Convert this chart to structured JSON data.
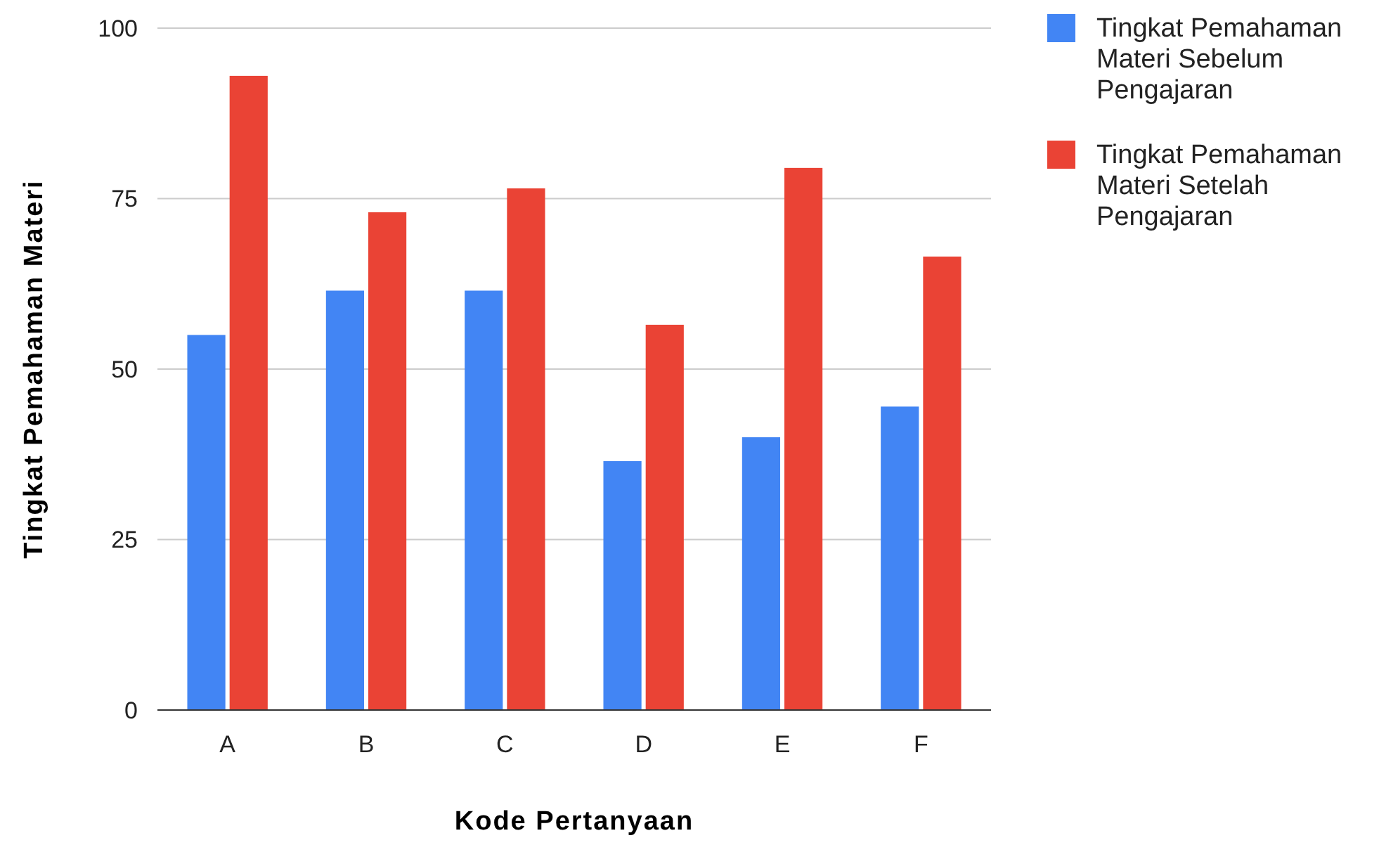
{
  "chart_data": {
    "type": "bar",
    "xlabel": "Kode Pertanyaan",
    "ylabel": "Tingkat Pemahaman Materi",
    "categories": [
      "A",
      "B",
      "C",
      "D",
      "E",
      "F"
    ],
    "series": [
      {
        "name": "Tingkat Pemahaman Materi Sebelum Pengajaran",
        "color": "#4285f4",
        "values": [
          55,
          61.5,
          61.5,
          36.5,
          40,
          44.5
        ]
      },
      {
        "name": "Tingkat Pemahaman Materi Setelah Pengajaran",
        "color": "#ea4335",
        "values": [
          93,
          73,
          76.5,
          56.5,
          79.5,
          66.5
        ]
      }
    ],
    "ylim": [
      0,
      100
    ],
    "yticks": [
      0,
      25,
      50,
      75,
      100
    ],
    "grid": "y",
    "legend": "right"
  }
}
